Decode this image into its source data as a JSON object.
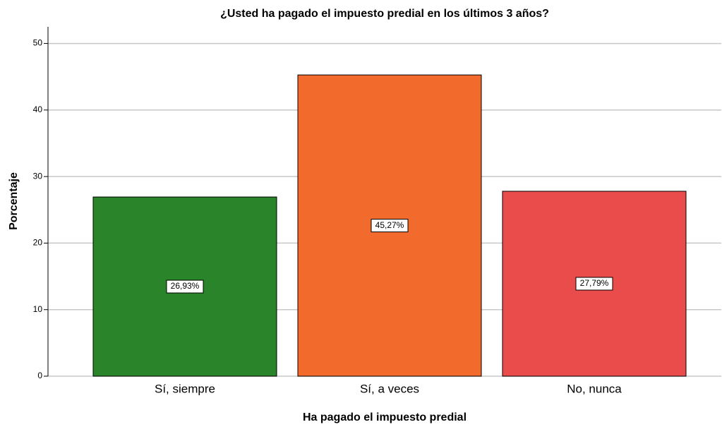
{
  "chart_data": {
    "type": "bar",
    "title": "¿Usted ha pagado el impuesto predial en los últimos 3 años?",
    "xlabel": "Ha pagado el impuesto predial",
    "ylabel": "Porcentaje",
    "categories": [
      "Sí, siempre",
      "Sí, a veces",
      "No, nunca"
    ],
    "values": [
      26.93,
      45.27,
      27.79
    ],
    "value_labels": [
      "26,93%",
      "45,27%",
      "27,79%"
    ],
    "colors": [
      "#2a8429",
      "#f26b2c",
      "#ea4b4b"
    ],
    "ylim": [
      0,
      52.5
    ],
    "yticks": [
      0,
      10,
      20,
      30,
      40,
      50
    ],
    "grid": true
  }
}
